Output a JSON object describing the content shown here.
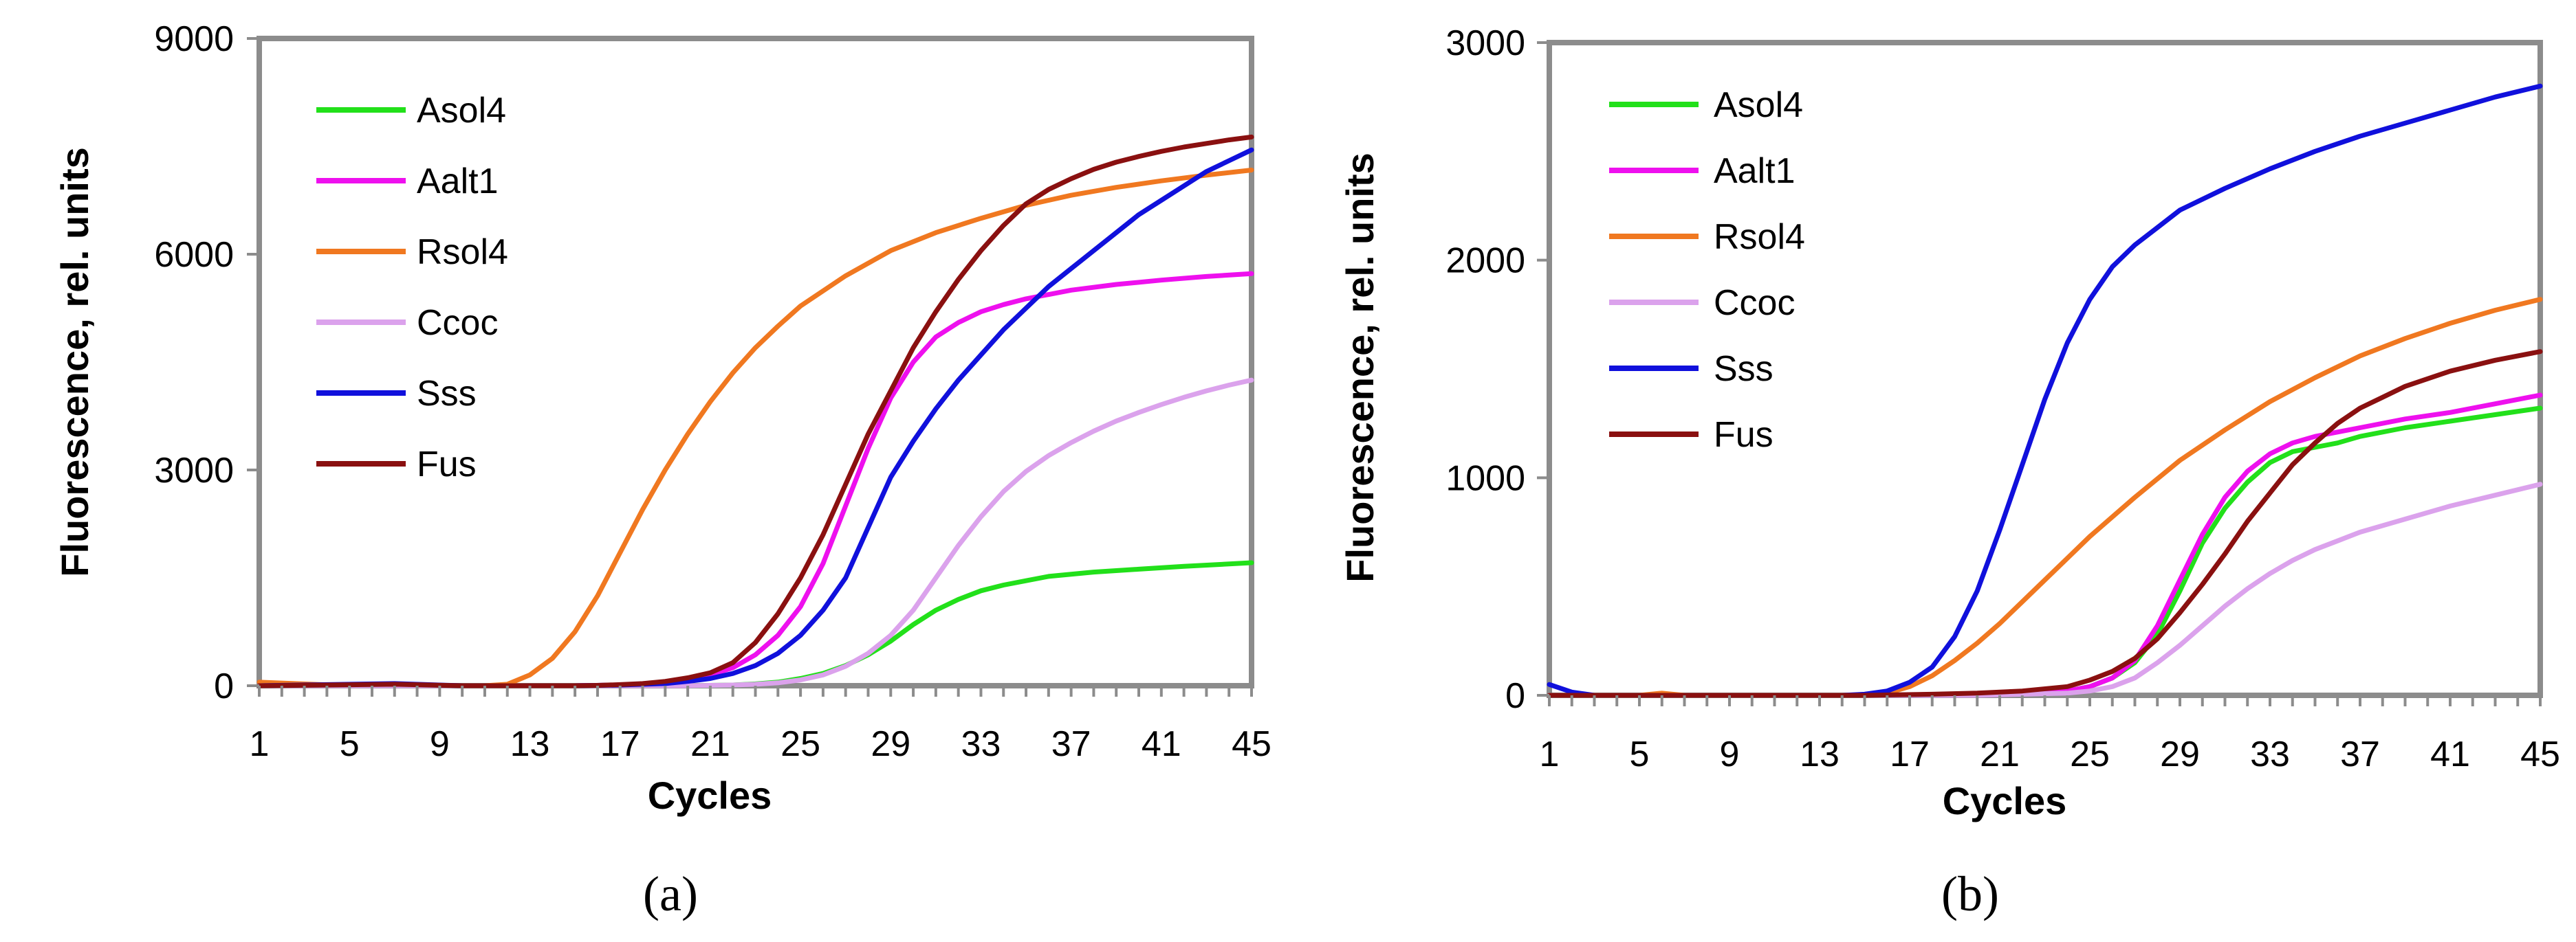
{
  "chart_data": [
    {
      "type": "line",
      "panel_label": "(a)",
      "xlabel": "Cycles",
      "ylabel": "Fluorescence, rel. units",
      "xlim": [
        1,
        45
      ],
      "ylim": [
        0,
        9000
      ],
      "xticks": [
        1,
        5,
        9,
        13,
        17,
        21,
        25,
        29,
        33,
        37,
        41,
        45
      ],
      "yticks": [
        0,
        3000,
        6000,
        9000
      ],
      "grid": false,
      "legend": "top-left",
      "series": [
        {
          "name": "Asol4",
          "color": "#22e01a",
          "x": [
            1,
            10,
            20,
            22,
            23,
            24,
            25,
            26,
            27,
            28,
            29,
            30,
            31,
            32,
            33,
            34,
            35,
            36,
            38,
            40,
            42,
            45
          ],
          "y": [
            0,
            0,
            0,
            10,
            25,
            50,
            100,
            170,
            280,
            430,
            620,
            850,
            1050,
            1200,
            1320,
            1400,
            1460,
            1520,
            1580,
            1620,
            1660,
            1710
          ]
        },
        {
          "name": "Aalt1",
          "color": "#ee10ee",
          "x": [
            1,
            10,
            15,
            17,
            19,
            20,
            21,
            22,
            23,
            24,
            25,
            26,
            27,
            28,
            29,
            30,
            31,
            32,
            33,
            34,
            35,
            37,
            39,
            41,
            43,
            45
          ],
          "y": [
            0,
            0,
            0,
            10,
            40,
            80,
            150,
            250,
            430,
            700,
            1100,
            1700,
            2500,
            3300,
            4000,
            4500,
            4850,
            5050,
            5200,
            5300,
            5380,
            5500,
            5580,
            5640,
            5690,
            5730
          ]
        },
        {
          "name": "Rsol4",
          "color": "#f07820",
          "x": [
            1,
            5,
            10,
            11,
            12,
            13,
            14,
            15,
            16,
            17,
            18,
            19,
            20,
            21,
            22,
            23,
            24,
            25,
            27,
            29,
            31,
            33,
            35,
            37,
            39,
            41,
            43,
            45
          ],
          "y": [
            50,
            0,
            0,
            0,
            20,
            150,
            380,
            750,
            1250,
            1850,
            2450,
            3000,
            3500,
            3950,
            4350,
            4700,
            5000,
            5280,
            5700,
            6050,
            6300,
            6500,
            6680,
            6820,
            6930,
            7020,
            7100,
            7170
          ]
        },
        {
          "name": "Ccoc",
          "color": "#dba2ec",
          "x": [
            1,
            10,
            20,
            22,
            23,
            24,
            25,
            26,
            27,
            28,
            29,
            30,
            31,
            32,
            33,
            34,
            35,
            36,
            37,
            38,
            39,
            40,
            41,
            42,
            43,
            44,
            45
          ],
          "y": [
            0,
            0,
            0,
            10,
            20,
            40,
            80,
            150,
            270,
            450,
            700,
            1050,
            1500,
            1950,
            2350,
            2700,
            2980,
            3200,
            3380,
            3540,
            3680,
            3800,
            3910,
            4010,
            4100,
            4180,
            4250
          ]
        },
        {
          "name": "Sss",
          "color": "#1010dc",
          "x": [
            1,
            7,
            10,
            15,
            17,
            19,
            20,
            21,
            22,
            23,
            24,
            25,
            26,
            27,
            28,
            29,
            30,
            31,
            32,
            33,
            34,
            35,
            36,
            37,
            38,
            39,
            40,
            41,
            42,
            43,
            44,
            45
          ],
          "y": [
            0,
            30,
            0,
            0,
            10,
            30,
            60,
            100,
            170,
            280,
            450,
            700,
            1050,
            1500,
            2200,
            2900,
            3400,
            3850,
            4250,
            4600,
            4950,
            5250,
            5550,
            5800,
            6050,
            6300,
            6550,
            6750,
            6950,
            7150,
            7300,
            7450
          ]
        },
        {
          "name": "Fus",
          "color": "#8a1010",
          "x": [
            1,
            7,
            10,
            15,
            16,
            17,
            18,
            19,
            20,
            21,
            22,
            23,
            24,
            25,
            26,
            27,
            28,
            29,
            30,
            31,
            32,
            33,
            34,
            35,
            36,
            37,
            38,
            39,
            40,
            41,
            42,
            43,
            44,
            45
          ],
          "y": [
            0,
            20,
            0,
            0,
            5,
            15,
            30,
            60,
            110,
            180,
            320,
            600,
            1000,
            1500,
            2100,
            2800,
            3500,
            4100,
            4700,
            5200,
            5650,
            6050,
            6400,
            6700,
            6900,
            7050,
            7180,
            7280,
            7360,
            7430,
            7490,
            7540,
            7590,
            7630
          ]
        }
      ]
    },
    {
      "type": "line",
      "panel_label": "(b)",
      "xlabel": "Cycles",
      "ylabel": "Fluorescence, rel. units",
      "xlim": [
        1,
        45
      ],
      "ylim": [
        0,
        3000
      ],
      "xticks": [
        1,
        5,
        9,
        13,
        17,
        21,
        25,
        29,
        33,
        37,
        41,
        45
      ],
      "yticks": [
        0,
        1000,
        2000,
        3000
      ],
      "grid": false,
      "legend": "top-left",
      "series": [
        {
          "name": "Asol4",
          "color": "#22e01a",
          "x": [
            1,
            15,
            20,
            22,
            24,
            25,
            26,
            27,
            28,
            29,
            30,
            31,
            32,
            33,
            34,
            35,
            36,
            37,
            39,
            41,
            43,
            45
          ],
          "y": [
            0,
            0,
            5,
            10,
            20,
            40,
            80,
            150,
            280,
            480,
            700,
            860,
            980,
            1070,
            1120,
            1140,
            1160,
            1190,
            1230,
            1260,
            1290,
            1320
          ]
        },
        {
          "name": "Aalt1",
          "color": "#ee10ee",
          "x": [
            1,
            15,
            20,
            22,
            24,
            25,
            26,
            27,
            28,
            29,
            30,
            31,
            32,
            33,
            34,
            35,
            36,
            37,
            39,
            41,
            43,
            45
          ],
          "y": [
            0,
            0,
            5,
            10,
            20,
            40,
            80,
            160,
            320,
            530,
            740,
            910,
            1030,
            1110,
            1160,
            1190,
            1210,
            1230,
            1270,
            1300,
            1340,
            1380
          ]
        },
        {
          "name": "Rsol4",
          "color": "#f07820",
          "x": [
            1,
            5,
            6,
            7,
            15,
            16,
            17,
            18,
            19,
            20,
            21,
            22,
            23,
            24,
            25,
            27,
            29,
            31,
            33,
            35,
            37,
            39,
            41,
            43,
            45
          ],
          "y": [
            0,
            0,
            10,
            0,
            0,
            10,
            40,
            90,
            160,
            240,
            330,
            430,
            530,
            630,
            730,
            910,
            1080,
            1220,
            1350,
            1460,
            1560,
            1640,
            1710,
            1770,
            1820
          ]
        },
        {
          "name": "Ccoc",
          "color": "#dba2ec",
          "x": [
            1,
            15,
            20,
            22,
            24,
            25,
            26,
            27,
            28,
            29,
            30,
            31,
            32,
            33,
            34,
            35,
            36,
            37,
            39,
            41,
            43,
            45
          ],
          "y": [
            0,
            0,
            0,
            5,
            10,
            20,
            40,
            80,
            150,
            230,
            320,
            410,
            490,
            560,
            620,
            670,
            710,
            750,
            810,
            870,
            920,
            970
          ]
        },
        {
          "name": "Sss",
          "color": "#1010dc",
          "x": [
            1,
            2,
            3,
            4,
            14,
            15,
            16,
            17,
            18,
            19,
            20,
            21,
            22,
            23,
            24,
            25,
            26,
            27,
            28,
            29,
            31,
            33,
            35,
            37,
            39,
            41,
            43,
            45
          ],
          "y": [
            50,
            15,
            0,
            0,
            0,
            5,
            20,
            60,
            130,
            270,
            480,
            760,
            1060,
            1360,
            1620,
            1820,
            1970,
            2070,
            2150,
            2230,
            2330,
            2420,
            2500,
            2570,
            2630,
            2690,
            2750,
            2800
          ]
        },
        {
          "name": "Fus",
          "color": "#8a1010",
          "x": [
            1,
            15,
            18,
            20,
            22,
            24,
            25,
            26,
            27,
            28,
            29,
            30,
            31,
            32,
            33,
            34,
            35,
            36,
            37,
            38,
            39,
            41,
            43,
            45
          ],
          "y": [
            0,
            0,
            5,
            10,
            20,
            40,
            70,
            110,
            170,
            260,
            380,
            510,
            650,
            800,
            930,
            1060,
            1160,
            1250,
            1320,
            1370,
            1420,
            1490,
            1540,
            1580
          ]
        }
      ]
    }
  ]
}
